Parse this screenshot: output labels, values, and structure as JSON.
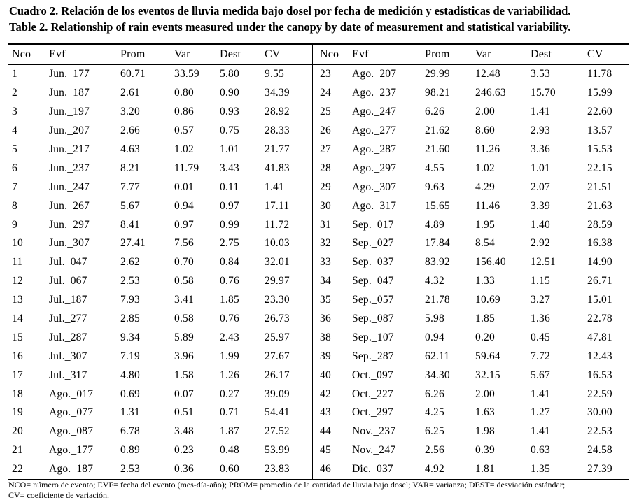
{
  "title": {
    "line1_es": "Cuadro 2. Relación de los eventos de lluvia medida bajo dosel por fecha de medición y estadísticas de variabilidad.",
    "line2_en": "Table 2. Relationship of rain events measured under the canopy by date of measurement and statistical variability."
  },
  "table": {
    "headers": [
      "Nco",
      "Evf",
      "Prom",
      "Var",
      "Dest",
      "CV"
    ],
    "left_rows": [
      [
        "1",
        "Jun._177",
        "60.71",
        "33.59",
        "5.80",
        "9.55"
      ],
      [
        "2",
        "Jun._187",
        "2.61",
        "0.80",
        "0.90",
        "34.39"
      ],
      [
        "3",
        "Jun._197",
        "3.20",
        "0.86",
        "0.93",
        "28.92"
      ],
      [
        "4",
        "Jun._207",
        "2.66",
        "0.57",
        "0.75",
        "28.33"
      ],
      [
        "5",
        "Jun._217",
        "4.63",
        "1.02",
        "1.01",
        "21.77"
      ],
      [
        "6",
        "Jun._237",
        "8.21",
        "11.79",
        "3.43",
        "41.83"
      ],
      [
        "7",
        "Jun._247",
        "7.77",
        "0.01",
        "0.11",
        "1.41"
      ],
      [
        "8",
        "Jun._267",
        "5.67",
        "0.94",
        "0.97",
        "17.11"
      ],
      [
        "9",
        "Jun._297",
        "8.41",
        "0.97",
        "0.99",
        "11.72"
      ],
      [
        "10",
        "Jun._307",
        "27.41",
        "7.56",
        "2.75",
        "10.03"
      ],
      [
        "11",
        "Jul._047",
        "2.62",
        "0.70",
        "0.84",
        "32.01"
      ],
      [
        "12",
        "Jul._067",
        "2.53",
        "0.58",
        "0.76",
        "29.97"
      ],
      [
        "13",
        "Jul._187",
        "7.93",
        "3.41",
        "1.85",
        "23.30"
      ],
      [
        "14",
        "Jul._277",
        "2.85",
        "0.58",
        "0.76",
        "26.73"
      ],
      [
        "15",
        "Jul._287",
        "9.34",
        "5.89",
        "2.43",
        "25.97"
      ],
      [
        "16",
        "Jul._307",
        "7.19",
        "3.96",
        "1.99",
        "27.67"
      ],
      [
        "17",
        "Jul._317",
        "4.80",
        "1.58",
        "1.26",
        "26.17"
      ],
      [
        "18",
        "Ago._017",
        "0.69",
        "0.07",
        "0.27",
        "39.09"
      ],
      [
        "19",
        "Ago._077",
        "1.31",
        "0.51",
        "0.71",
        "54.41"
      ],
      [
        "20",
        "Ago._087",
        "6.78",
        "3.48",
        "1.87",
        "27.52"
      ],
      [
        "21",
        "Ago._177",
        "0.89",
        "0.23",
        "0.48",
        "53.99"
      ],
      [
        "22",
        "Ago._187",
        "2.53",
        "0.36",
        "0.60",
        "23.83"
      ]
    ],
    "right_rows": [
      [
        "23",
        "Ago._207",
        "29.99",
        "12.48",
        "3.53",
        "11.78"
      ],
      [
        "24",
        "Ago._237",
        "98.21",
        "246.63",
        "15.70",
        "15.99"
      ],
      [
        "25",
        "Ago._247",
        "6.26",
        "2.00",
        "1.41",
        "22.60"
      ],
      [
        "26",
        "Ago._277",
        "21.62",
        "8.60",
        "2.93",
        "13.57"
      ],
      [
        "27",
        "Ago._287",
        "21.60",
        "11.26",
        "3.36",
        "15.53"
      ],
      [
        "28",
        "Ago._297",
        "4.55",
        "1.02",
        "1.01",
        "22.15"
      ],
      [
        "29",
        "Ago._307",
        "9.63",
        "4.29",
        "2.07",
        "21.51"
      ],
      [
        "30",
        "Ago._317",
        "15.65",
        "11.46",
        "3.39",
        "21.63"
      ],
      [
        "31",
        "Sep._017",
        "4.89",
        "1.95",
        "1.40",
        "28.59"
      ],
      [
        "32",
        "Sep._027",
        "17.84",
        "8.54",
        "2.92",
        "16.38"
      ],
      [
        "33",
        "Sep._037",
        "83.92",
        "156.40",
        "12.51",
        "14.90"
      ],
      [
        "34",
        "Sep._047",
        "4.32",
        "1.33",
        "1.15",
        "26.71"
      ],
      [
        "35",
        "Sep._057",
        "21.78",
        "10.69",
        "3.27",
        "15.01"
      ],
      [
        "36",
        "Sep._087",
        "5.98",
        "1.85",
        "1.36",
        "22.78"
      ],
      [
        "38",
        "Sep._107",
        "0.94",
        "0.20",
        "0.45",
        "47.81"
      ],
      [
        "39",
        "Sep._287",
        "62.11",
        "59.64",
        "7.72",
        "12.43"
      ],
      [
        "40",
        "Oct._097",
        "34.30",
        "32.15",
        "5.67",
        "16.53"
      ],
      [
        "42",
        "Oct._227",
        "6.26",
        "2.00",
        "1.41",
        "22.59"
      ],
      [
        "43",
        "Oct._297",
        "4.25",
        "1.63",
        "1.27",
        "30.00"
      ],
      [
        "44",
        "Nov._237",
        "6.25",
        "1.98",
        "1.41",
        "22.53"
      ],
      [
        "45",
        "Nov._247",
        "2.56",
        "0.39",
        "0.63",
        "24.58"
      ],
      [
        "46",
        "Dic._037",
        "4.92",
        "1.81",
        "1.35",
        "27.39"
      ]
    ]
  },
  "footnote": {
    "line1": "NCO= número de evento; EVF= fecha del evento (mes-día-año); PROM= promedio de la cantidad de lluvia bajo dosel; VAR= varianza; DEST= desviación estándar;",
    "line2": "CV= coeficiente de variación."
  },
  "colors": {
    "background": "#ffffff",
    "text": "#000000",
    "rule": "#000000"
  }
}
